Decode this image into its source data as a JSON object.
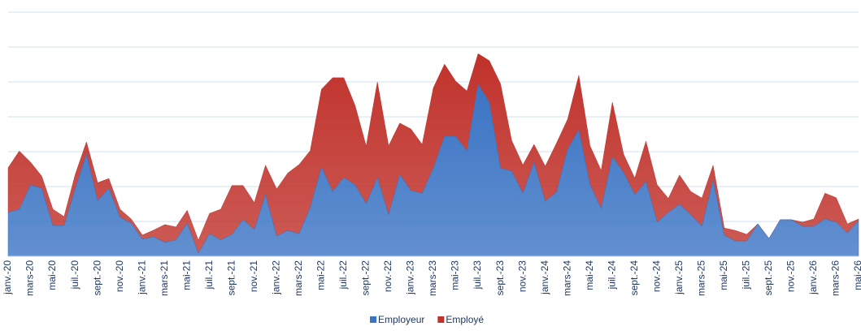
{
  "chart_data": {
    "type": "stacked-area",
    "categories": [
      "janv.-20",
      null,
      "mars-20",
      null,
      "mai-20",
      null,
      "juil.-20",
      null,
      "sept.-20",
      null,
      "nov.-20",
      null,
      "janv.-21",
      null,
      "mars-21",
      null,
      "mai-21",
      null,
      "juil.-21",
      null,
      "sept.-21",
      null,
      "nov.-21",
      null,
      "janv.-22",
      null,
      "mars-22",
      null,
      "mai-22",
      null,
      "juil.-22",
      null,
      "sept.-22",
      null,
      "nov.-22",
      null,
      "janv.-23",
      null,
      "mars-23",
      null,
      "mai-23",
      null,
      "juil.-23",
      null,
      "sept.-23",
      null,
      "nov.-23",
      null,
      "janv.-24",
      null,
      "mars-24",
      null,
      "mai-24",
      null,
      "juil.-24",
      null,
      "sept.-24",
      null,
      "nov.-24",
      null,
      "janv.-25",
      null,
      "mars-25",
      null,
      "mai-25",
      null,
      "juil.-25",
      null,
      "sept.-25",
      null,
      "nov.-25",
      null,
      "janv.-26",
      null,
      "mars-26",
      null,
      "mai-26"
    ],
    "series": [
      {
        "name": "Employeur",
        "color": "#3b74c4",
        "values": [
          1.26,
          1.35,
          2.05,
          1.95,
          0.88,
          0.88,
          1.95,
          2.93,
          1.6,
          1.95,
          1.12,
          0.95,
          0.49,
          0.56,
          0.4,
          0.47,
          0.95,
          0.09,
          0.65,
          0.47,
          0.63,
          1.05,
          0.77,
          1.77,
          0.58,
          0.74,
          0.65,
          1.4,
          2.56,
          1.86,
          2.26,
          2.05,
          1.51,
          2.26,
          1.19,
          2.35,
          1.88,
          1.81,
          2.53,
          3.44,
          3.44,
          3.02,
          4.93,
          4.42,
          2.53,
          2.44,
          1.81,
          2.7,
          1.58,
          1.84,
          3.07,
          3.63,
          2.05,
          1.37,
          2.86,
          2.4,
          1.77,
          2.14,
          0.98,
          1.26,
          1.49,
          1.19,
          0.86,
          2.19,
          0.6,
          0.44,
          0.44,
          0.93,
          0.51,
          1.05,
          1.05,
          0.86,
          0.86,
          1.07,
          0.98,
          0.67,
          1.02
        ]
      },
      {
        "name": "Employé",
        "color": "#c0322b",
        "values": [
          1.28,
          1.67,
          0.65,
          0.35,
          0.47,
          0.26,
          0.4,
          0.35,
          0.51,
          0.28,
          0.23,
          0.12,
          0.12,
          0.19,
          0.51,
          0.37,
          0.37,
          0.37,
          0.58,
          0.88,
          1.4,
          0.98,
          0.77,
          0.84,
          1.35,
          1.65,
          1.98,
          1.63,
          2.23,
          3.26,
          2.86,
          2.28,
          1.65,
          2.74,
          1.98,
          1.47,
          1.77,
          1.4,
          2.3,
          2.07,
          1.58,
          1.72,
          0.88,
          1.19,
          2.42,
          0.88,
          0.81,
          0.51,
          1.0,
          1.4,
          0.86,
          1.56,
          1.12,
          1.09,
          1.56,
          0.53,
          0.47,
          1.16,
          1.07,
          0.4,
          0.84,
          0.67,
          0.81,
          0.42,
          0.21,
          0.3,
          0.19,
          0,
          0,
          0,
          0,
          0.12,
          0.21,
          0.74,
          0.7,
          0.26,
          0.05
        ]
      }
    ],
    "ylim": [
      0,
      7
    ],
    "yticks": [
      1,
      2,
      3,
      4,
      5,
      6,
      7
    ],
    "grid": true,
    "legend": "bottom"
  }
}
